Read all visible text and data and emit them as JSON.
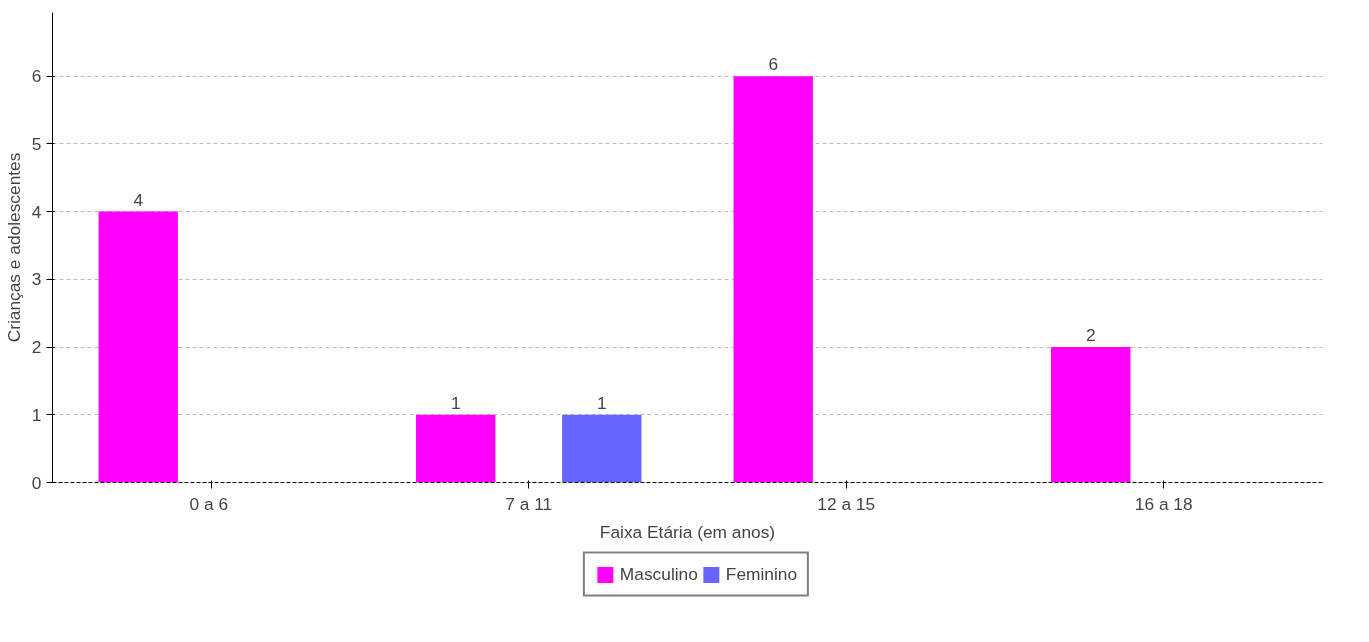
{
  "chart_data": {
    "type": "bar",
    "xlabel": "Faixa Etária (em anos)",
    "ylabel": "Crianças e adolescentes",
    "categories": [
      "0 a  6",
      "7 a 11",
      "12 a 15",
      "16 a 18"
    ],
    "series": [
      {
        "name": "Masculino",
        "color": "#ff00ff",
        "values": [
          4,
          1,
          6,
          2
        ]
      },
      {
        "name": "Feminino",
        "color": "#6666ff",
        "values": [
          null,
          1,
          null,
          null
        ]
      }
    ],
    "ylim": [
      0,
      6.94
    ],
    "yticks": [
      0,
      1,
      2,
      3,
      4,
      5,
      6
    ],
    "grid": "y",
    "legend": "bottom",
    "data_labels": true
  }
}
